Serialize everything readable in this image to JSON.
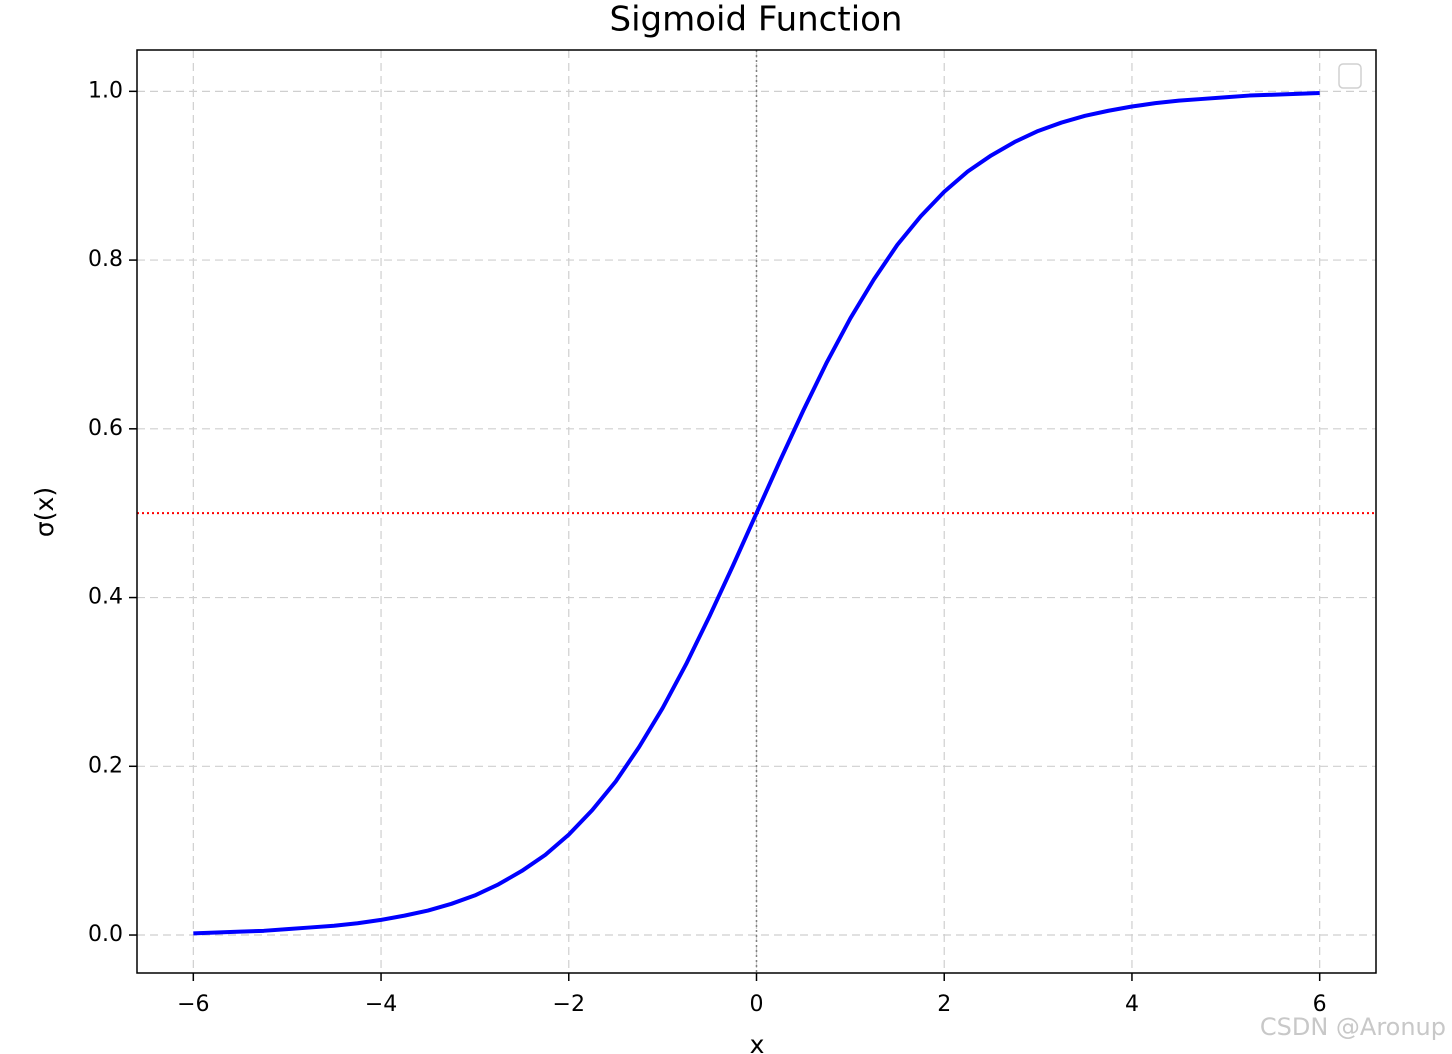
{
  "chart_data": {
    "type": "line",
    "title": "Sigmoid Function",
    "xlabel": "x",
    "ylabel": "σ(x)",
    "x": [
      -6,
      -5.75,
      -5.5,
      -5.25,
      -5,
      -4.75,
      -4.5,
      -4.25,
      -4,
      -3.75,
      -3.5,
      -3.25,
      -3,
      -2.75,
      -2.5,
      -2.25,
      -2,
      -1.75,
      -1.5,
      -1.25,
      -1,
      -0.75,
      -0.5,
      -0.25,
      0,
      0.25,
      0.5,
      0.75,
      1,
      1.25,
      1.5,
      1.75,
      2,
      2.25,
      2.5,
      2.75,
      3,
      3.25,
      3.5,
      3.75,
      4,
      4.25,
      4.5,
      4.75,
      5,
      5.25,
      5.5,
      5.75,
      6
    ],
    "series": [
      {
        "color": "#0000ff",
        "values": [
          0.002,
          0.003,
          0.004,
          0.005,
          0.007,
          0.009,
          0.011,
          0.014,
          0.018,
          0.023,
          0.029,
          0.037,
          0.047,
          0.06,
          0.076,
          0.095,
          0.119,
          0.148,
          0.182,
          0.223,
          0.269,
          0.321,
          0.378,
          0.438,
          0.5,
          0.562,
          0.622,
          0.679,
          0.731,
          0.777,
          0.818,
          0.852,
          0.881,
          0.905,
          0.924,
          0.94,
          0.953,
          0.963,
          0.971,
          0.977,
          0.982,
          0.986,
          0.989,
          0.991,
          0.993,
          0.995,
          0.996,
          0.997,
          0.998
        ]
      }
    ],
    "xlim": [
      -6.6,
      6.6
    ],
    "ylim": [
      -0.045,
      1.049
    ],
    "xticks": [
      {
        "value": -6,
        "label": "−6"
      },
      {
        "value": -4,
        "label": "−4"
      },
      {
        "value": -2,
        "label": "−2"
      },
      0,
      2,
      4,
      6
    ],
    "yticks": [
      {
        "value": 0,
        "label": "0.0"
      },
      0.2,
      0.4,
      0.6,
      0.8,
      {
        "value": 1,
        "label": "1.0"
      }
    ],
    "grid": true,
    "legend": "upper right",
    "hline": {
      "y": 0.5,
      "color": "#ff0000"
    },
    "vline": {
      "x": 0,
      "color": "#808080"
    },
    "watermark": "CSDN @Aronup"
  }
}
